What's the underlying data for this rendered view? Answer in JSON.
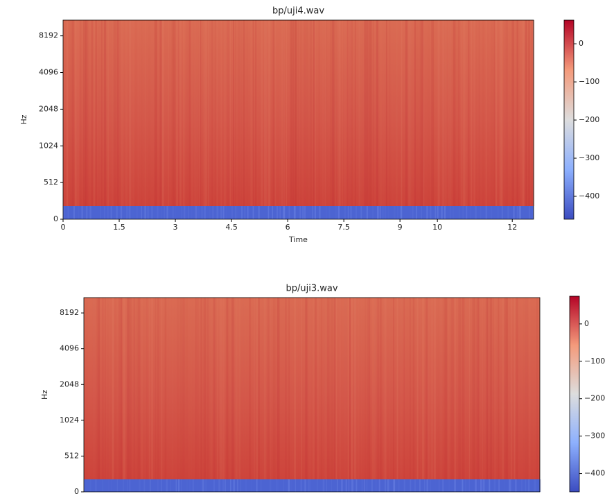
{
  "chart_data": [
    {
      "type": "spectrogram",
      "title": "bp/uji4.wav",
      "ylabel": "Hz",
      "xlabel": "Time",
      "xlim": [
        0,
        12.57
      ],
      "xticks": [
        0,
        1.5,
        3,
        4.5,
        6,
        7.5,
        9,
        10,
        12
      ],
      "ylim": [
        0,
        11025
      ],
      "yticks": [
        0,
        512,
        1024,
        2048,
        4096,
        8192
      ],
      "colormap": "coolwarm",
      "colorbar": {
        "lim": [
          -460,
          62
        ],
        "ticks": [
          0,
          {
            "value": -100,
            "label": "−100"
          },
          {
            "value": -200,
            "label": "−200"
          },
          {
            "value": -300,
            "label": "−300"
          },
          {
            "value": -400,
            "label": "−400"
          }
        ]
      }
    },
    {
      "type": "spectrogram",
      "title": "bp/uji3.wav",
      "ylabel": "Hz",
      "ylim": [
        0,
        11025
      ],
      "yticks": [
        0,
        512,
        1024,
        2048,
        4096,
        8192
      ],
      "colormap": "coolwarm",
      "colorbar": {
        "lim": [
          -449,
          74
        ],
        "ticks": [
          0,
          {
            "value": -100,
            "label": "−100"
          },
          {
            "value": -200,
            "label": "−200"
          },
          {
            "value": -300,
            "label": "−300"
          },
          {
            "value": -400,
            "label": "−400"
          }
        ]
      }
    }
  ]
}
